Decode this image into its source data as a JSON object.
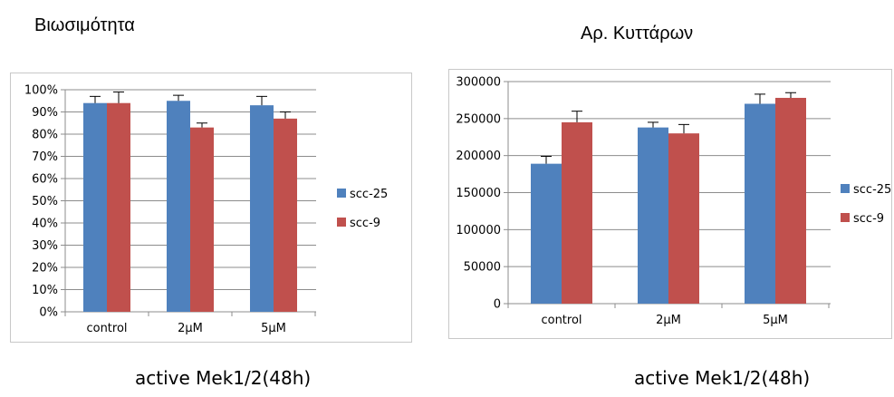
{
  "chart_data": [
    {
      "type": "bar",
      "title": "Βιωσιμότητα",
      "caption": "active Mek1/2(48h)",
      "categories": [
        "control",
        "2μM",
        "5μM"
      ],
      "ylim": [
        0,
        100
      ],
      "y_ticks": [
        0,
        10,
        20,
        30,
        40,
        50,
        60,
        70,
        80,
        90,
        100
      ],
      "y_tick_suffix": "%",
      "grid": true,
      "legend": "right",
      "series": [
        {
          "name": "scc-25",
          "color": "#4F81BD",
          "values": [
            94,
            95,
            93
          ],
          "errors": [
            3,
            2.5,
            4
          ]
        },
        {
          "name": "scc-9",
          "color": "#C0504D",
          "values": [
            94,
            83,
            87
          ],
          "errors": [
            5,
            2,
            3
          ]
        }
      ]
    },
    {
      "type": "bar",
      "title": "Αρ. Κυττάρων",
      "caption": "active Mek1/2(48h)",
      "categories": [
        "control",
        "2μM",
        "5μM"
      ],
      "ylim": [
        0,
        300000
      ],
      "y_ticks": [
        0,
        50000,
        100000,
        150000,
        200000,
        250000,
        300000
      ],
      "y_tick_suffix": "",
      "grid": true,
      "legend": "right",
      "series": [
        {
          "name": "scc-25",
          "color": "#4F81BD",
          "values": [
            189000,
            238000,
            270000
          ],
          "errors": [
            10000,
            7000,
            13000
          ]
        },
        {
          "name": "scc-9",
          "color": "#C0504D",
          "values": [
            245000,
            230000,
            278000
          ],
          "errors": [
            15000,
            12000,
            7000
          ]
        }
      ]
    }
  ]
}
